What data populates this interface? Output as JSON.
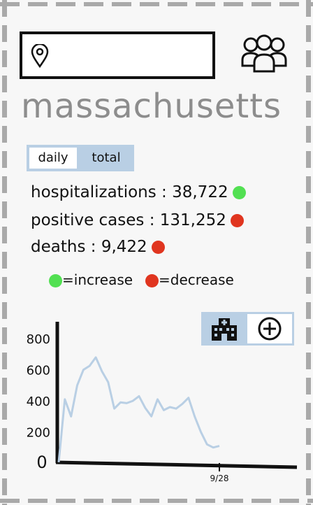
{
  "header": {
    "search_value": "",
    "location_icon": "location-pin-icon",
    "profile_icon": "group-people-icon"
  },
  "state": {
    "name": "massachusetts"
  },
  "toggle": {
    "daily_label": "daily",
    "total_label": "total",
    "selected": "daily"
  },
  "stats": [
    {
      "label": "hospitalizations",
      "value": "38,722",
      "trend": "increase"
    },
    {
      "label": "positive cases",
      "value": "131,252",
      "trend": "decrease"
    },
    {
      "label": "deaths",
      "value": "9,422",
      "trend": "decrease"
    }
  ],
  "legend": {
    "increase_label": "=increase",
    "decrease_label": "=decrease"
  },
  "colors": {
    "increase": "#52e052",
    "decrease": "#e0351f",
    "accent": "#b9cfe4",
    "line": "#b9cfe4"
  },
  "actions": {
    "hospital_icon": "hospital-icon",
    "add_icon": "plus-circle-icon"
  },
  "chart_data": {
    "type": "line",
    "x": [
      0,
      1,
      2,
      3,
      4,
      5,
      6,
      7,
      8,
      9,
      10,
      11,
      12,
      13,
      14,
      15,
      16,
      17,
      18,
      19,
      20,
      21,
      22,
      23,
      24,
      25,
      26
    ],
    "xticks": [
      "9/28"
    ],
    "yticks": [
      "0",
      "200",
      "400",
      "600",
      "800"
    ],
    "values": [
      5,
      410,
      300,
      500,
      600,
      625,
      680,
      590,
      520,
      350,
      390,
      385,
      400,
      430,
      355,
      300,
      410,
      340,
      360,
      350,
      380,
      420,
      300,
      200,
      120,
      100,
      110
    ],
    "ylim": [
      0,
      900
    ],
    "xlabel": "",
    "ylabel": ""
  }
}
